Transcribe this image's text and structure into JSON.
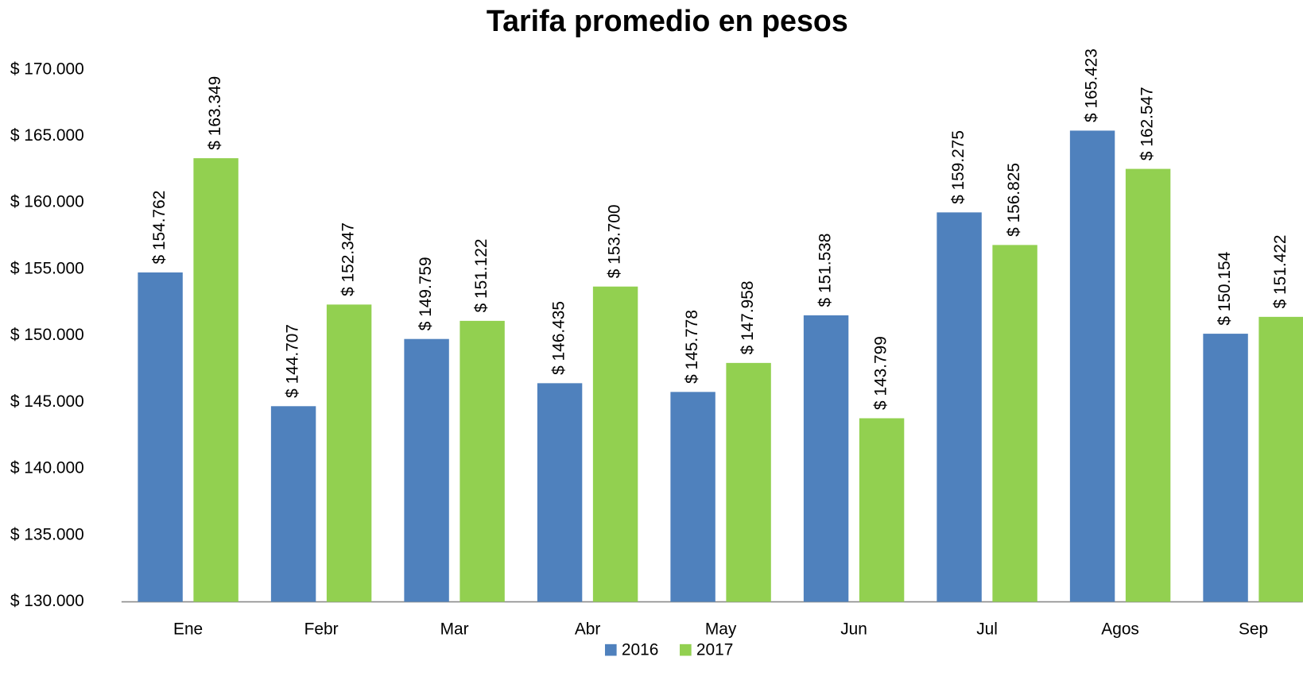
{
  "chart_data": {
    "type": "bar",
    "title": "Tarifa promedio en pesos",
    "categories": [
      "Ene",
      "Febr",
      "Mar",
      "Abr",
      "May",
      "Jun",
      "Jul",
      "Agos",
      "Sep"
    ],
    "series": [
      {
        "name": "2016",
        "color": "#4f81bd",
        "values": [
          154762,
          144707,
          149759,
          146435,
          145778,
          151538,
          159275,
          165423,
          150154
        ],
        "value_labels": [
          "$ 154.762",
          "$ 144.707",
          "$ 149.759",
          "$ 146.435",
          "$ 145.778",
          "$ 151.538",
          "$ 159.275",
          "$ 165.423",
          "$ 150.154"
        ]
      },
      {
        "name": "2017",
        "color": "#92d050",
        "values": [
          163349,
          152347,
          151122,
          153700,
          147958,
          143799,
          156825,
          162547,
          151422
        ],
        "value_labels": [
          "$ 163.349",
          "$ 152.347",
          "$ 151.122",
          "$ 153.700",
          "$ 147.958",
          "$ 143.799",
          "$ 156.825",
          "$ 162.547",
          "$ 151.422"
        ]
      }
    ],
    "ylim": [
      130000,
      170000
    ],
    "yticks": [
      {
        "value": 130000,
        "label": "$ 130.000"
      },
      {
        "value": 135000,
        "label": "$ 135.000"
      },
      {
        "value": 140000,
        "label": "$ 140.000"
      },
      {
        "value": 145000,
        "label": "$ 145.000"
      },
      {
        "value": 150000,
        "label": "$ 150.000"
      },
      {
        "value": 155000,
        "label": "$ 155.000"
      },
      {
        "value": 160000,
        "label": "$ 160.000"
      },
      {
        "value": 165000,
        "label": "$ 165.000"
      },
      {
        "value": 170000,
        "label": "$ 170.000"
      }
    ],
    "grid": false,
    "legend": "bottom"
  }
}
